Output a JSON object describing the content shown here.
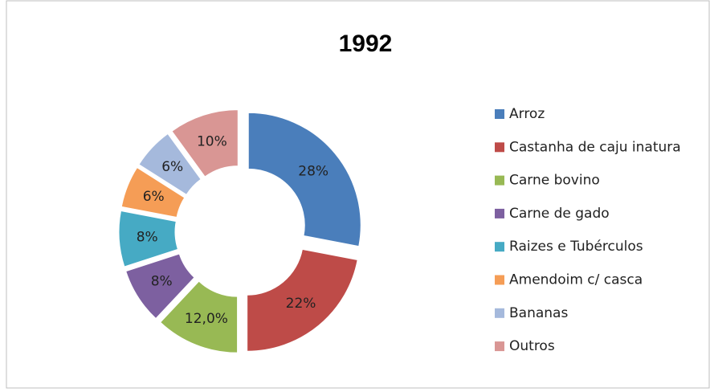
{
  "chart_data": {
    "type": "donut",
    "title": "1992",
    "categories": [
      "Arroz",
      "Castanha de caju inatura",
      "Carne bovino",
      "Carne de gado",
      "Raizes e Tubérculos",
      "Amendoim c/ casca",
      "Bananas",
      "Outros"
    ],
    "values": [
      28,
      22,
      12,
      8,
      8,
      6,
      6,
      10
    ],
    "value_labels": [
      "28%",
      "22%",
      "12,0%",
      "8%",
      "8%",
      "6%",
      "6%",
      "10%"
    ],
    "colors": [
      "#4a7ebb",
      "#be4b48",
      "#98b954",
      "#7d60a0",
      "#46aac4",
      "#f59d56",
      "#a5b9dc",
      "#d99694"
    ],
    "legend": "right"
  }
}
